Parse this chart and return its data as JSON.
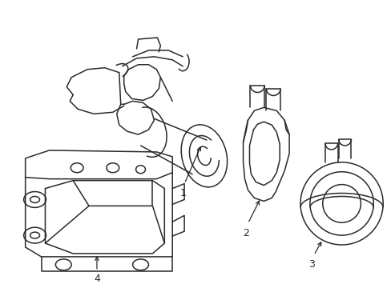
{
  "background_color": "#ffffff",
  "line_color": "#2a2a2a",
  "line_width": 1.1,
  "figsize": [
    4.89,
    3.6
  ],
  "dpi": 100
}
